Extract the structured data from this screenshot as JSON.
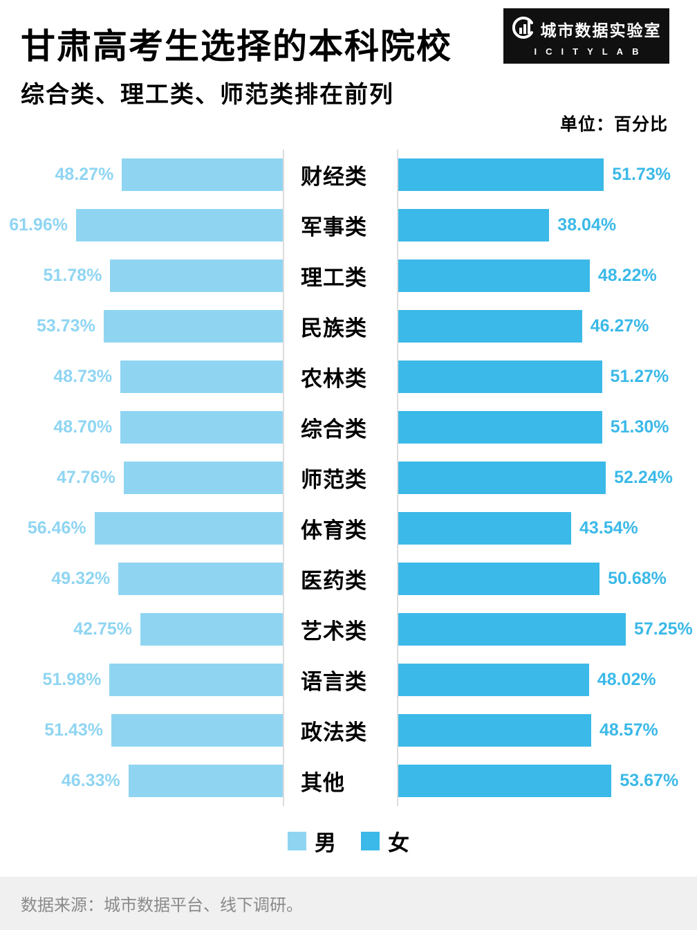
{
  "header": {
    "title": "甘肃高考生选择的本科院校",
    "subtitle": "综合类、理工类、师范类排在前列",
    "unit_label": "单位：百分比",
    "logo": {
      "icon": "bar-chart-arc-icon",
      "name": "城市数据实验室",
      "sub": "ICITYLAB"
    }
  },
  "chart_data": {
    "type": "bar",
    "orientation": "bidirectional-horizontal",
    "title": "甘肃高考生选择的本科院校",
    "subtitle": "综合类、理工类、师范类排在前列",
    "unit": "百分比",
    "value_suffix": "%",
    "left_axis_max": 61.96,
    "right_axis_max": 57.25,
    "grid": "two vertical divider lines flanking center category column",
    "legend_position": "bottom-center",
    "categories": [
      "财经类",
      "军事类",
      "理工类",
      "民族类",
      "农林类",
      "综合类",
      "师范类",
      "体育类",
      "医药类",
      "艺术类",
      "语言类",
      "政法类",
      "其他"
    ],
    "series": [
      {
        "name": "男",
        "side": "left",
        "color": "#8FD5F2",
        "values": [
          48.27,
          61.96,
          51.78,
          53.73,
          48.73,
          48.7,
          47.76,
          56.46,
          49.32,
          42.75,
          51.98,
          51.43,
          46.33
        ]
      },
      {
        "name": "女",
        "side": "right",
        "color": "#3BB9E8",
        "values": [
          51.73,
          38.04,
          48.22,
          46.27,
          51.27,
          51.3,
          52.24,
          43.54,
          50.68,
          57.25,
          48.02,
          48.57,
          53.67
        ]
      }
    ]
  },
  "footer": {
    "source": "数据来源：城市数据平台、线下调研。"
  }
}
